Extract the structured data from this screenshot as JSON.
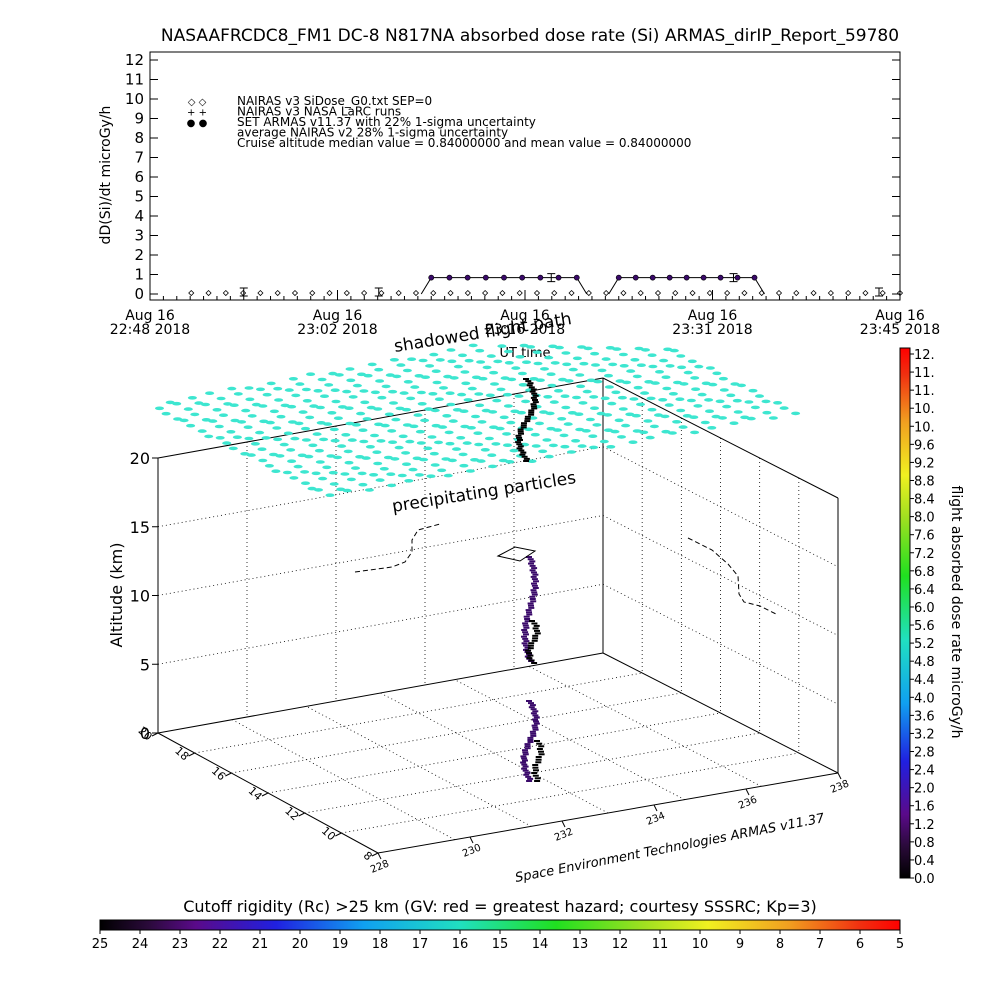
{
  "title": "NASAAFRCDC8_FM1 DC-8    N817NA absorbed dose rate (Si) ARMAS_dirIP_Report_59780",
  "chart_data": [
    {
      "type": "scatter",
      "name": "dose-rate-timeseries",
      "ylabel": "dD(Si)/dt microGy/h",
      "xlabel": "UT time",
      "ylim": [
        0,
        12
      ],
      "y_ticks": [
        "0",
        "1",
        "2",
        "3",
        "4",
        "5",
        "6",
        "7",
        "8",
        "9",
        "10",
        "11",
        "12"
      ],
      "x_ticks": [
        {
          "line1": "Aug 16",
          "line2": "22:48 2018"
        },
        {
          "line1": "Aug 16",
          "line2": "23:02 2018"
        },
        {
          "line1": "Aug 16",
          "line2": "23:16 2018"
        },
        {
          "line1": "Aug 16",
          "line2": "23:31 2018"
        },
        {
          "line1": "Aug 16",
          "line2": "23:45 2018"
        }
      ],
      "legend": [
        {
          "symbol": "◇ ◇",
          "text": "NAIRAS v3 SiDose_G0.txt SEP=0"
        },
        {
          "symbol": "+ +",
          "text": "NAIRAS v3 NASA LaRC runs"
        },
        {
          "symbol": "● ●",
          "text": "SET ARMAS v11.37 with 22% 1-sigma uncertainty"
        },
        {
          "symbol": "",
          "text": "average NAIRAS v2 28% 1-sigma uncertainty"
        },
        {
          "symbol": "",
          "text": "Cruise altitude median value = 0.84000000 and mean value = 0.84000000"
        }
      ],
      "series": [
        {
          "name": "SET ARMAS v11.37",
          "segments": [
            {
              "x_start": 0.375,
              "x_end": 0.569,
              "value": 0.84,
              "points": 9
            },
            {
              "x_start": 0.625,
              "x_end": 0.806,
              "value": 0.84,
              "points": 9
            }
          ]
        },
        {
          "name": "NAIRAS v3 SiDose_G0.txt SEP=0",
          "value": 0.05,
          "points": 42
        }
      ],
      "error_bars": [
        {
          "x": 0.125,
          "value": 0.1
        },
        {
          "x": 0.305,
          "value": 0.1
        },
        {
          "x": 0.535,
          "value": 0.84
        },
        {
          "x": 0.778,
          "value": 0.84
        },
        {
          "x": 0.972,
          "value": 0.1
        }
      ]
    },
    {
      "type": "scatter",
      "name": "3d-flight-path",
      "zlabel": "Altitude (km)",
      "z_ticks": [
        "0",
        "5",
        "10",
        "15",
        "20"
      ],
      "zlim": [
        0,
        20
      ],
      "y_ticks": [
        "8",
        "10",
        "12",
        "14",
        "16",
        "18",
        "20"
      ],
      "x_ticks": [
        "228",
        "230",
        "232",
        "234",
        "236",
        "238"
      ],
      "annotations": [
        {
          "text": "shadowed flight path"
        },
        {
          "text": "precipitating particles"
        }
      ],
      "credit": "Space Environment Technologies ARMAS v11.37",
      "particle_color": "#3de6d0",
      "path_color": "#000000"
    }
  ],
  "colorbar_right": {
    "label": "flight absorbed dose rate microGy/h",
    "ticks": [
      "12.",
      "11.",
      "11.",
      "10.",
      "10.",
      "9.6",
      "9.2",
      "8.8",
      "8.4",
      "8.0",
      "7.6",
      "7.2",
      "6.8",
      "6.4",
      "6.0",
      "5.6",
      "5.2",
      "4.8",
      "4.4",
      "4.0",
      "3.6",
      "3.2",
      "2.8",
      "2.4",
      "2.0",
      "1.6",
      "1.2",
      "0.8",
      "0.4",
      "0.0"
    ]
  },
  "colorbar_bottom": {
    "title": "Cutoff rigidity (Rc) >25 km (GV: red = greatest hazard; courtesy SSSRC; Kp=3)",
    "ticks": [
      "25",
      "24",
      "23",
      "22",
      "21",
      "20",
      "19",
      "18",
      "17",
      "16",
      "15",
      "14",
      "13",
      "12",
      "11",
      "10",
      "9",
      "8",
      "7",
      "6",
      "5"
    ]
  }
}
